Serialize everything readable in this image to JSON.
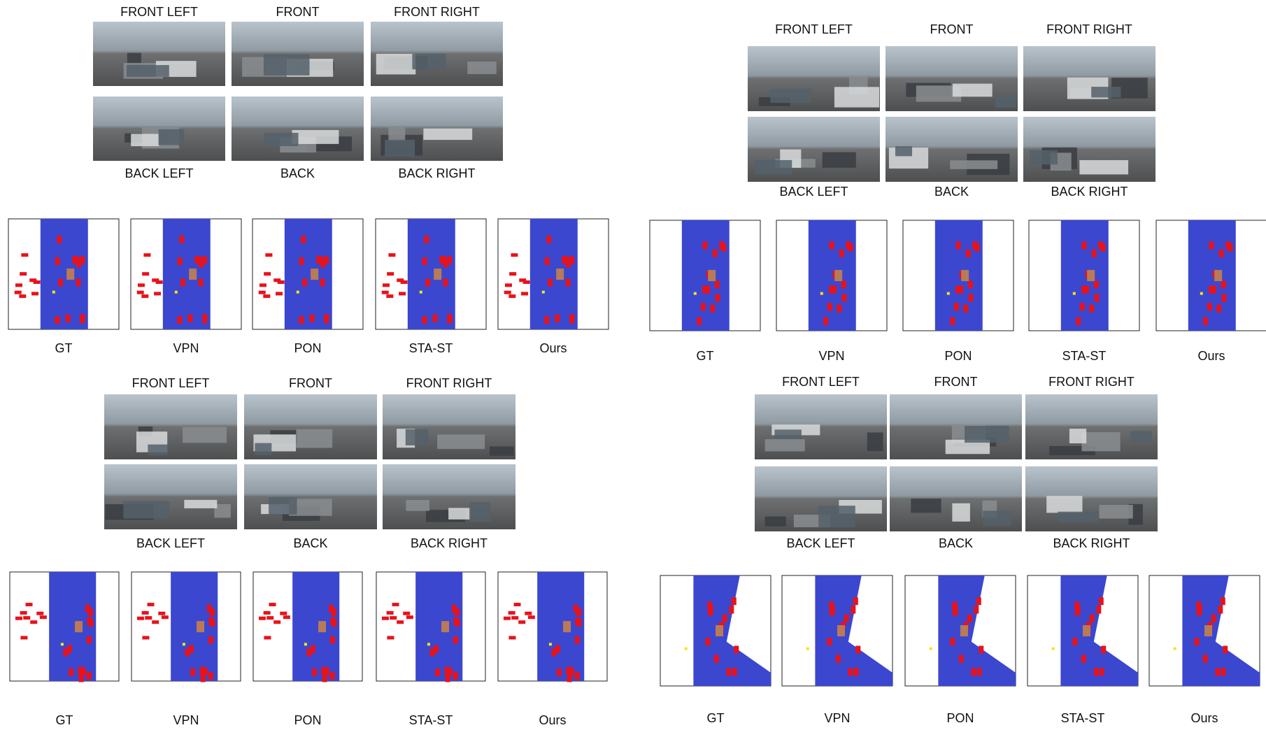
{
  "panels": [
    {
      "top_labels": [
        "FRONT LEFT",
        "FRONT",
        "FRONT RIGHT"
      ],
      "bottom_labels": [
        "BACK LEFT",
        "BACK",
        "BACK RIGHT"
      ],
      "methods": [
        "GT",
        "VPN",
        "PON",
        "STA-ST",
        "Ours"
      ]
    },
    {
      "top_labels": [
        "FRONT LEFT",
        "FRONT",
        "FRONT RIGHT"
      ],
      "bottom_labels": [
        "BACK LEFT",
        "BACK",
        "BACK RIGHT"
      ],
      "methods": [
        "GT",
        "VPN",
        "PON",
        "STA-ST",
        "Ours"
      ]
    },
    {
      "top_labels": [
        "FRONT LEFT",
        "FRONT",
        "FRONT RIGHT"
      ],
      "bottom_labels": [
        "BACK LEFT",
        "BACK",
        "BACK RIGHT"
      ],
      "methods": [
        "GT",
        "VPN",
        "PON",
        "STA-ST",
        "Ours"
      ]
    },
    {
      "top_labels": [
        "FRONT LEFT",
        "FRONT",
        "FRONT RIGHT"
      ],
      "bottom_labels": [
        "BACK LEFT",
        "BACK",
        "BACK RIGHT"
      ],
      "methods": [
        "GT",
        "VPN",
        "PON",
        "STA-ST",
        "Ours"
      ]
    }
  ]
}
